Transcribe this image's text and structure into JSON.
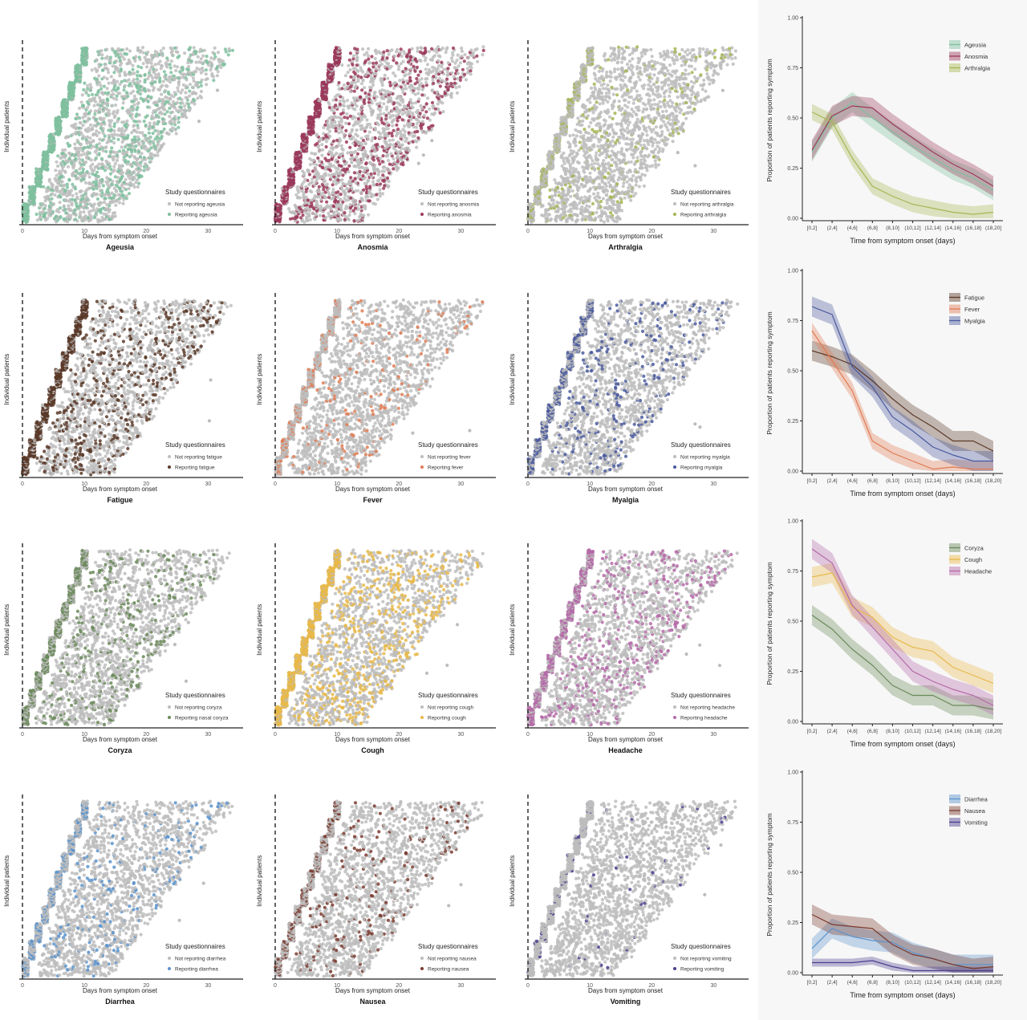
{
  "common": {
    "x_axis_label": "Days from symptom onset",
    "y_axis_label": "Individual patients",
    "legend_title": "Study questionnaires",
    "x_ticks": [
      0,
      10,
      20,
      30
    ],
    "line_x_label": "Time from symptom onset (days)",
    "line_y_label": "Proportion of patients reporting symptom",
    "line_y_ticks": [
      "0.00",
      "0.25",
      "0.50",
      "0.75",
      "1.00"
    ],
    "line_categories": [
      "[0,2]",
      "(2,4]",
      "(4,6]",
      "(6,8]",
      "(8,10]",
      "(10,12]",
      "(12,14]",
      "(14,16]",
      "(16,18]",
      "(18,20]"
    ]
  },
  "colors": {
    "not_reporting": "#bdbdbd",
    "ageusia": "#7fbf9f",
    "anosmia": "#9b3a5c",
    "arthralgia": "#a7b553",
    "fatigue": "#5b3a29",
    "fever": "#e07b54",
    "myalgia": "#4a5a9e",
    "coryza": "#6b8a5a",
    "cough": "#e8b84a",
    "headache": "#b56aa8",
    "diarrhea": "#5b93cc",
    "nausea": "#7a3b2f",
    "vomiting": "#4b3f8f"
  },
  "chart_data": [
    {
      "type": "scatter",
      "title": "Ageusia",
      "xlabel": "Days from symptom onset",
      "ylabel": "Individual patients",
      "xlim": [
        0,
        35
      ],
      "legend_title": "Study questionnaires",
      "legend": [
        "Not reporting ageusia",
        "Reporting ageusia"
      ],
      "series": [
        {
          "name": "Not reporting ageusia"
        },
        {
          "name": "Reporting ageusia"
        }
      ],
      "reporting_share": 0.55,
      "x_ticks": [
        0,
        10,
        20,
        30
      ]
    },
    {
      "type": "scatter",
      "title": "Anosmia",
      "xlabel": "Days from symptom onset",
      "ylabel": "Individual patients",
      "xlim": [
        0,
        35
      ],
      "legend_title": "Study questionnaires",
      "legend": [
        "Not reporting anosmia",
        "Reporting anosmia"
      ],
      "series": [
        {
          "name": "Not reporting anosmia"
        },
        {
          "name": "Reporting anosmia"
        }
      ],
      "reporting_share": 0.5,
      "x_ticks": [
        0,
        10,
        20,
        30
      ]
    },
    {
      "type": "scatter",
      "title": "Arthralgia",
      "xlabel": "Days from symptom onset",
      "ylabel": "Individual patients",
      "xlim": [
        0,
        35
      ],
      "legend_title": "Study questionnaires",
      "legend": [
        "Not reporting arthralgia",
        "Reporting arthralgia"
      ],
      "series": [
        {
          "name": "Not reporting arthralgia"
        },
        {
          "name": "Reporting arthralgia"
        }
      ],
      "reporting_share": 0.15,
      "x_ticks": [
        0,
        10,
        20,
        30
      ]
    },
    {
      "type": "line",
      "legend": [
        "Ageusia",
        "Anosmia",
        "Arthralgia"
      ],
      "categories": [
        "[0,2]",
        "(2,4]",
        "(4,6]",
        "(6,8]",
        "(8,10]",
        "(10,12]",
        "(12,14]",
        "(14,16]",
        "(16,18]",
        "(18,20]"
      ],
      "ylim": [
        0,
        1
      ],
      "xlabel": "Time from symptom onset (days)",
      "ylabel": "Proportion of patients reporting symptom",
      "series": [
        {
          "name": "Ageusia",
          "values": [
            0.33,
            0.5,
            0.58,
            0.5,
            0.43,
            0.36,
            0.3,
            0.24,
            0.2,
            0.14
          ],
          "ci_half": 0.05
        },
        {
          "name": "Anosmia",
          "values": [
            0.34,
            0.51,
            0.56,
            0.55,
            0.47,
            0.4,
            0.33,
            0.27,
            0.22,
            0.16
          ],
          "ci_half": 0.05
        },
        {
          "name": "Arthralgia",
          "values": [
            0.53,
            0.48,
            0.3,
            0.16,
            0.11,
            0.07,
            0.05,
            0.03,
            0.02,
            0.03
          ],
          "ci_half": 0.04
        }
      ]
    },
    {
      "type": "scatter",
      "title": "Fatigue",
      "xlabel": "Days from symptom onset",
      "ylabel": "Individual patients",
      "xlim": [
        0,
        35
      ],
      "legend_title": "Study questionnaires",
      "legend": [
        "Not reporting fatigue",
        "Reporting fatigue"
      ],
      "series": [
        {
          "name": "Not reporting fatigue"
        },
        {
          "name": "Reporting fatigue"
        }
      ],
      "reporting_share": 0.45,
      "x_ticks": [
        0,
        10,
        20,
        30
      ]
    },
    {
      "type": "scatter",
      "title": "Fever",
      "xlabel": "Days from symptom onset",
      "ylabel": "Individual patients",
      "xlim": [
        0,
        35
      ],
      "legend_title": "Study questionnaires",
      "legend": [
        "Not reporting fever",
        "Reporting fever"
      ],
      "series": [
        {
          "name": "Not reporting fever"
        },
        {
          "name": "Reporting fever"
        }
      ],
      "reporting_share": 0.12,
      "x_ticks": [
        0,
        10,
        20,
        30
      ]
    },
    {
      "type": "scatter",
      "title": "Myalgia",
      "xlabel": "Days from symptom onset",
      "ylabel": "Individual patients",
      "xlim": [
        0,
        35
      ],
      "legend_title": "Study questionnaires",
      "legend": [
        "Not reporting myalgia",
        "Reporting myalgia"
      ],
      "series": [
        {
          "name": "Not reporting myalgia"
        },
        {
          "name": "Reporting myalgia"
        }
      ],
      "reporting_share": 0.25,
      "x_ticks": [
        0,
        10,
        20,
        30
      ]
    },
    {
      "type": "line",
      "legend": [
        "Fatigue",
        "Fever",
        "Myalgia"
      ],
      "categories": [
        "[0,2]",
        "(2,4]",
        "(4,6]",
        "(6,8]",
        "(8,10]",
        "(10,12]",
        "(12,14]",
        "(14,16]",
        "(16,18]",
        "(18,20]"
      ],
      "ylim": [
        0,
        1
      ],
      "xlabel": "Time from symptom onset (days)",
      "ylabel": "Proportion of patients reporting symptom",
      "series": [
        {
          "name": "Fatigue",
          "values": [
            0.6,
            0.57,
            0.53,
            0.45,
            0.36,
            0.28,
            0.22,
            0.15,
            0.15,
            0.1
          ],
          "ci_half": 0.05
        },
        {
          "name": "Fever",
          "values": [
            0.7,
            0.55,
            0.4,
            0.15,
            0.09,
            0.05,
            0.01,
            0.02,
            0.01,
            0.01
          ],
          "ci_half": 0.04
        },
        {
          "name": "Myalgia",
          "values": [
            0.82,
            0.78,
            0.52,
            0.42,
            0.27,
            0.2,
            0.12,
            0.08,
            0.05,
            0.05
          ],
          "ci_half": 0.05
        }
      ]
    },
    {
      "type": "scatter",
      "title": "Coryza",
      "xlabel": "Days from symptom onset",
      "ylabel": "Individual patients",
      "xlim": [
        0,
        35
      ],
      "legend_title": "Study questionnaires",
      "legend": [
        "Not reporting coryza",
        "Reporting nasal coryza"
      ],
      "series": [
        {
          "name": "Not reporting coryza"
        },
        {
          "name": "Reporting nasal coryza"
        }
      ],
      "reporting_share": 0.3,
      "x_ticks": [
        0,
        10,
        20,
        30
      ]
    },
    {
      "type": "scatter",
      "title": "Cough",
      "xlabel": "Days from symptom onset",
      "ylabel": "Individual patients",
      "xlim": [
        0,
        35
      ],
      "legend_title": "Study questionnaires",
      "legend": [
        "Not reporting cough",
        "Reporting cough"
      ],
      "series": [
        {
          "name": "Not reporting cough"
        },
        {
          "name": "Reporting cough"
        }
      ],
      "reporting_share": 0.5,
      "x_ticks": [
        0,
        10,
        20,
        30
      ]
    },
    {
      "type": "scatter",
      "title": "Headache",
      "xlabel": "Days from symptom onset",
      "ylabel": "Individual patients",
      "xlim": [
        0,
        35
      ],
      "legend_title": "Study questionnaires",
      "legend": [
        "Not reporting headache",
        "Reporting headache"
      ],
      "series": [
        {
          "name": "Not reporting headache"
        },
        {
          "name": "Reporting headache"
        }
      ],
      "reporting_share": 0.35,
      "x_ticks": [
        0,
        10,
        20,
        30
      ]
    },
    {
      "type": "line",
      "legend": [
        "Coryza",
        "Cough",
        "Headache"
      ],
      "categories": [
        "[0,2]",
        "(2,4]",
        "(4,6]",
        "(6,8]",
        "(8,10]",
        "(10,12]",
        "(12,14]",
        "(14,16]",
        "(16,18]",
        "(18,20]"
      ],
      "ylim": [
        0,
        1
      ],
      "xlabel": "Time from symptom onset (days)",
      "ylabel": "Proportion of patients reporting symptom",
      "series": [
        {
          "name": "Coryza",
          "values": [
            0.53,
            0.46,
            0.36,
            0.28,
            0.18,
            0.13,
            0.13,
            0.08,
            0.08,
            0.06
          ],
          "ci_half": 0.05
        },
        {
          "name": "Cough",
          "values": [
            0.72,
            0.74,
            0.57,
            0.52,
            0.42,
            0.37,
            0.35,
            0.27,
            0.23,
            0.19
          ],
          "ci_half": 0.05
        },
        {
          "name": "Headache",
          "values": [
            0.86,
            0.79,
            0.58,
            0.47,
            0.36,
            0.25,
            0.2,
            0.16,
            0.13,
            0.08
          ],
          "ci_half": 0.05
        }
      ]
    },
    {
      "type": "scatter",
      "title": "Diarrhea",
      "xlabel": "Days from symptom onset",
      "ylabel": "Individual patients",
      "xlim": [
        0,
        35
      ],
      "legend_title": "Study questionnaires",
      "legend": [
        "Not reporting diarrhea",
        "Reporting diarrhea"
      ],
      "series": [
        {
          "name": "Not reporting diarrhea"
        },
        {
          "name": "Reporting diarrhea"
        }
      ],
      "reporting_share": 0.18,
      "x_ticks": [
        0,
        10,
        20,
        30
      ]
    },
    {
      "type": "scatter",
      "title": "Nausea",
      "xlabel": "Days from symptom onset",
      "ylabel": "Individual patients",
      "xlim": [
        0,
        35
      ],
      "legend_title": "Study questionnaires",
      "legend": [
        "Not reporting nausea",
        "Reporting nausea"
      ],
      "series": [
        {
          "name": "Not reporting nausea"
        },
        {
          "name": "Reporting nausea"
        }
      ],
      "reporting_share": 0.15,
      "x_ticks": [
        0,
        10,
        20,
        30
      ]
    },
    {
      "type": "scatter",
      "title": "Vomiting",
      "xlabel": "Days from symptom onset",
      "ylabel": "Individual patients",
      "xlim": [
        0,
        35
      ],
      "legend_title": "Study questionnaires",
      "legend": [
        "Not reporting vomiting",
        "Reporting vomiting"
      ],
      "series": [
        {
          "name": "Not reporting vomiting"
        },
        {
          "name": "Reporting vomiting"
        }
      ],
      "reporting_share": 0.03,
      "x_ticks": [
        0,
        10,
        20,
        30
      ]
    },
    {
      "type": "line",
      "legend": [
        "Diarrhea",
        "Nausea",
        "Vomiting"
      ],
      "categories": [
        "[0,2]",
        "(2,4]",
        "(4,6]",
        "(6,8]",
        "(8,10]",
        "(10,12]",
        "(12,14]",
        "(14,16]",
        "(16,18]",
        "(18,20]"
      ],
      "ylim": [
        0,
        1
      ],
      "xlabel": "Time from symptom onset (days)",
      "ylabel": "Proportion of patients reporting symptom",
      "series": [
        {
          "name": "Diarrhea",
          "values": [
            0.12,
            0.22,
            0.18,
            0.16,
            0.15,
            0.1,
            0.07,
            0.04,
            0.04,
            0.04
          ],
          "ci_half": 0.05
        },
        {
          "name": "Nausea",
          "values": [
            0.29,
            0.24,
            0.23,
            0.22,
            0.14,
            0.09,
            0.07,
            0.04,
            0.02,
            0.03
          ],
          "ci_half": 0.05
        },
        {
          "name": "Vomiting",
          "values": [
            0.05,
            0.05,
            0.05,
            0.06,
            0.03,
            0.01,
            0.01,
            0.01,
            0.01,
            0.01
          ],
          "ci_half": 0.02
        }
      ]
    }
  ]
}
